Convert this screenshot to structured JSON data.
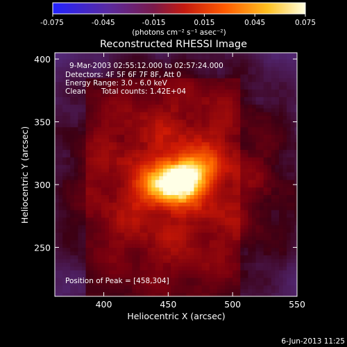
{
  "colorbar": {
    "ticks": [
      "-0.075",
      "-0.045",
      "-0.015",
      "0.015",
      "0.045",
      "0.075"
    ],
    "range": [
      -0.075,
      0.075
    ],
    "unit_label": "(photons cm⁻² s⁻¹ asec⁻²)"
  },
  "chart_data": {
    "type": "heatmap",
    "title": "Reconstructed RHESSI Image",
    "xlabel": "Heliocentric X (arcsec)",
    "ylabel": "Heliocentric Y (arcsec)",
    "xlim": [
      362,
      550
    ],
    "ylim": [
      211,
      405
    ],
    "xticks": [
      400,
      450,
      500,
      550
    ],
    "yticks": [
      250,
      300,
      350,
      400
    ],
    "annotations": {
      "time_range": "9-Mar-2003 02:55:12.000 to 02:57:24.000",
      "detectors": "Detectors: 4F 5F 6F 7F 8F, Att 0",
      "energy": "Energy Range: 3.0 - 6.0 keV",
      "clean_label": "Clean",
      "total_counts": "Total counts: 1.42E+04",
      "peak": "Position of Peak = [458,304]"
    },
    "peak_position": [
      458,
      304
    ],
    "peak_value": 0.075,
    "colormap": "blue-purple-red-yellow-white"
  },
  "footer": {
    "date": "6-Jun-2013 11:25"
  }
}
